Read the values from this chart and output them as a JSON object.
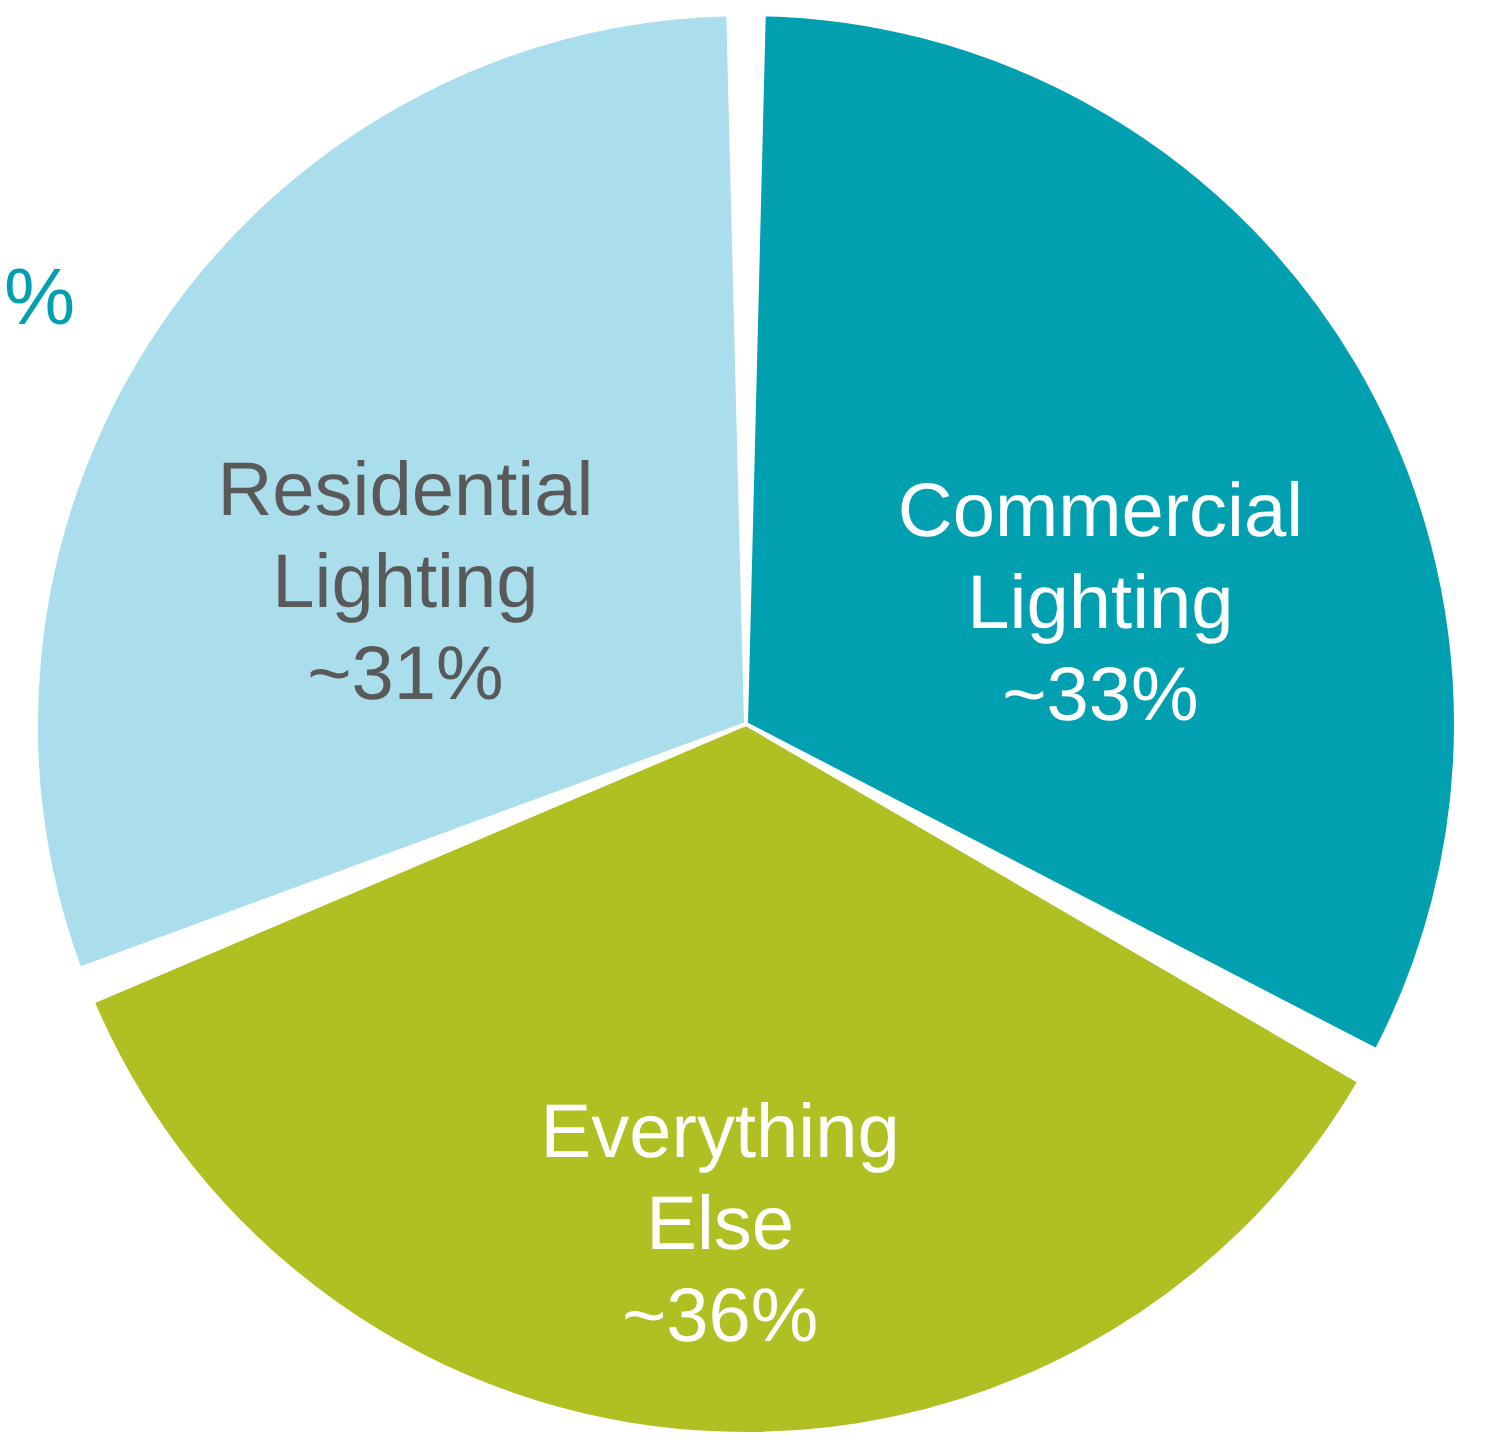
{
  "chart_data": {
    "type": "pie",
    "categories": [
      "Commercial Lighting",
      "Everything Else",
      "Residential Lighting"
    ],
    "values": [
      33,
      36,
      31
    ],
    "colors": [
      "#00a0b0",
      "#b0bf22",
      "#aadeec"
    ],
    "value_labels": [
      "~33%",
      "~36%",
      "~31%"
    ],
    "annotations": [
      "%"
    ]
  }
}
